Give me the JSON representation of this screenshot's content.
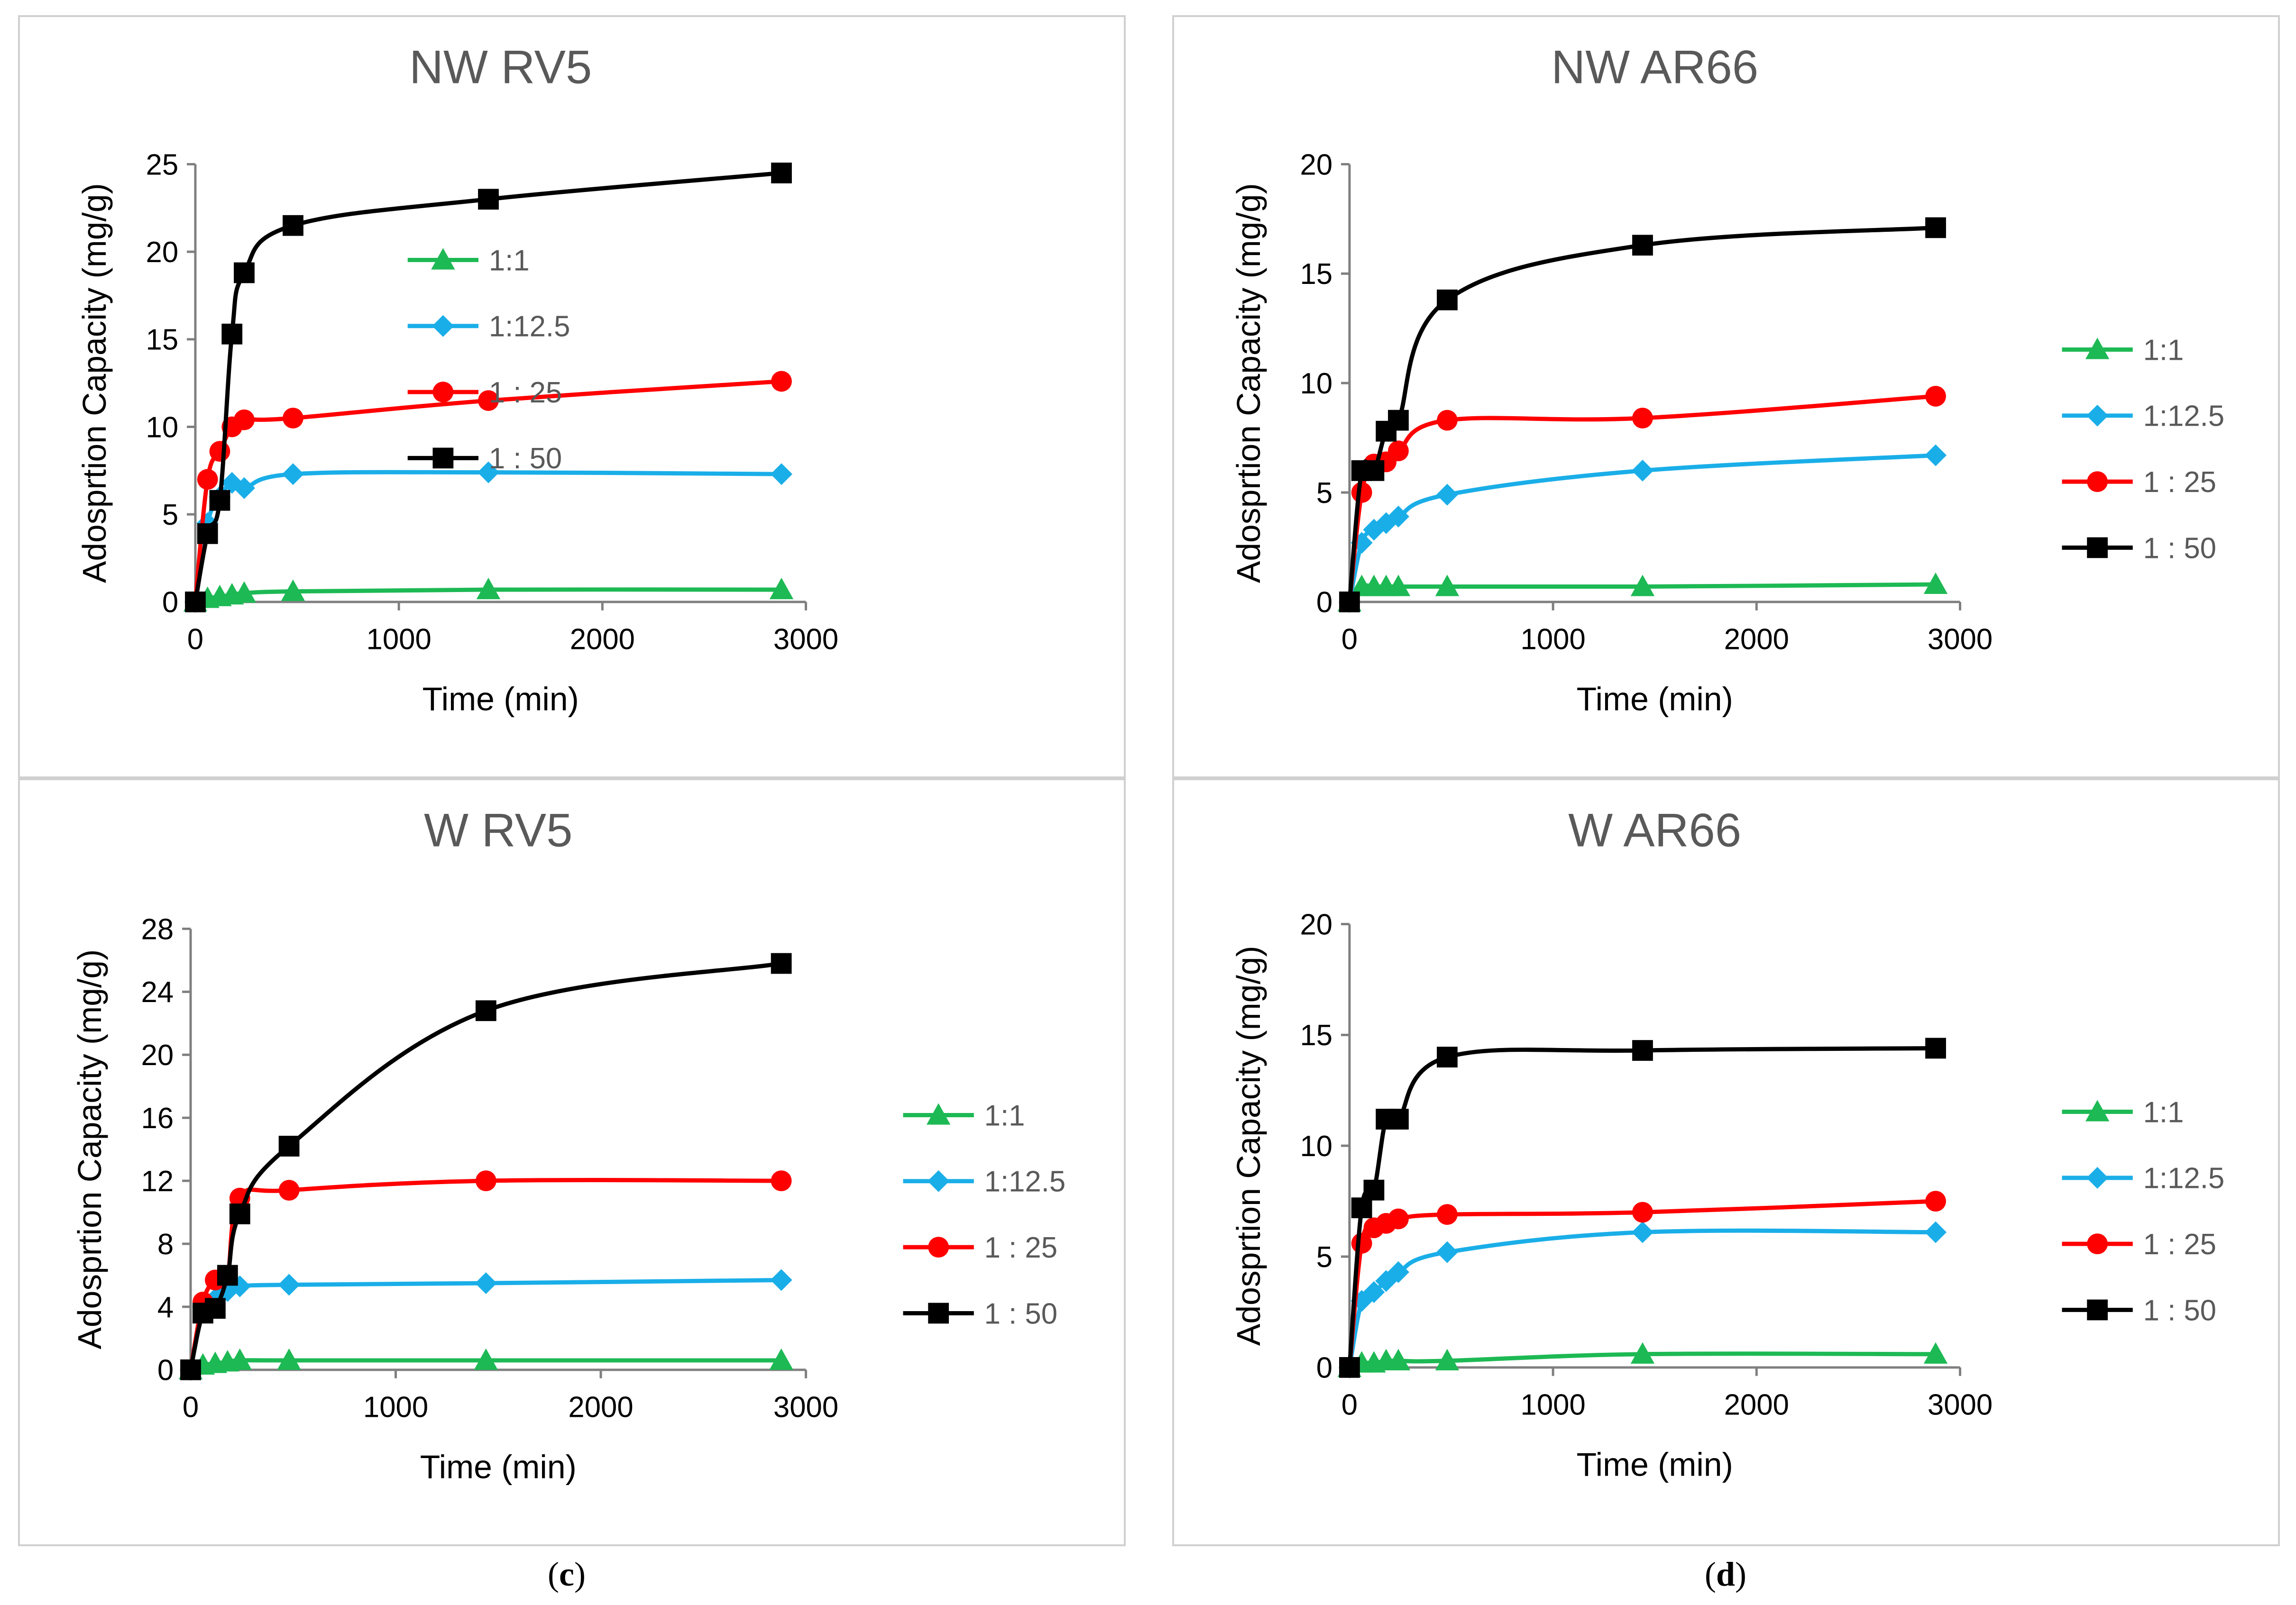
{
  "chart_data": [
    {
      "type": "line",
      "title": "NW RV5",
      "xlabel": "Time (min)",
      "ylabel": "Adosprtion Capacity  (mg/g)",
      "xlim": [
        0,
        3000
      ],
      "ylim": [
        0,
        25
      ],
      "xticks": [
        0,
        1000,
        2000,
        3000
      ],
      "yticks": [
        0,
        5,
        10,
        15,
        20,
        25
      ],
      "legend": "inside-center",
      "series": [
        {
          "name": "1:1",
          "color": "#1db954",
          "marker": "triangle",
          "x": [
            0,
            60,
            120,
            180,
            240,
            480,
            1440,
            2880
          ],
          "y": [
            0,
            0.2,
            0.3,
            0.4,
            0.5,
            0.6,
            0.7,
            0.7
          ]
        },
        {
          "name": "1:12.5",
          "color": "#1aaee8",
          "marker": "diamond",
          "x": [
            0,
            60,
            120,
            180,
            240,
            480,
            1440,
            2880
          ],
          "y": [
            0,
            4.5,
            6.0,
            6.8,
            6.5,
            7.3,
            7.4,
            7.3
          ]
        },
        {
          "name": "1 : 25",
          "color": "#ff0000",
          "marker": "circle",
          "x": [
            0,
            60,
            120,
            180,
            240,
            480,
            1440,
            2880
          ],
          "y": [
            0,
            7.0,
            8.6,
            10.0,
            10.4,
            10.5,
            11.5,
            12.6
          ]
        },
        {
          "name": "1 : 50",
          "color": "#000000",
          "marker": "square",
          "x": [
            0,
            60,
            120,
            180,
            240,
            480,
            1440,
            2880
          ],
          "y": [
            0,
            3.9,
            5.8,
            15.3,
            18.8,
            21.5,
            23.0,
            24.5
          ]
        }
      ]
    },
    {
      "type": "line",
      "title": "NW AR66",
      "xlabel": "Time (min)",
      "ylabel": "Adosprtion Capacity  (mg/g)",
      "xlim": [
        0,
        3000
      ],
      "ylim": [
        0,
        20
      ],
      "xticks": [
        0,
        1000,
        2000,
        3000
      ],
      "yticks": [
        0,
        5,
        10,
        15,
        20
      ],
      "legend": "right",
      "series": [
        {
          "name": "1:1",
          "color": "#1db954",
          "marker": "triangle",
          "x": [
            0,
            60,
            120,
            180,
            240,
            480,
            1440,
            2880
          ],
          "y": [
            0,
            0.7,
            0.7,
            0.7,
            0.7,
            0.7,
            0.7,
            0.8
          ]
        },
        {
          "name": "1:12.5",
          "color": "#1aaee8",
          "marker": "diamond",
          "x": [
            0,
            60,
            120,
            180,
            240,
            480,
            1440,
            2880
          ],
          "y": [
            0,
            2.7,
            3.3,
            3.6,
            3.9,
            4.9,
            6.0,
            6.7
          ]
        },
        {
          "name": "1 : 25",
          "color": "#ff0000",
          "marker": "circle",
          "x": [
            0,
            60,
            120,
            180,
            240,
            480,
            1440,
            2880
          ],
          "y": [
            0,
            5.0,
            6.3,
            6.4,
            6.9,
            8.3,
            8.4,
            9.4
          ]
        },
        {
          "name": "1 : 50",
          "color": "#000000",
          "marker": "square",
          "x": [
            0,
            60,
            120,
            180,
            240,
            480,
            1440,
            2880
          ],
          "y": [
            0,
            6.0,
            6.0,
            7.8,
            8.3,
            13.8,
            16.3,
            17.1
          ]
        }
      ]
    },
    {
      "type": "line",
      "title": "W RV5",
      "xlabel": "Time (min)",
      "ylabel": "Adosprtion Capacity  (mg/g)",
      "xlim": [
        0,
        3000
      ],
      "ylim": [
        0,
        28
      ],
      "xticks": [
        0,
        1000,
        2000,
        3000
      ],
      "yticks": [
        0,
        4,
        8,
        12,
        16,
        20,
        24,
        28
      ],
      "legend": "right",
      "series": [
        {
          "name": "1:1",
          "color": "#1db954",
          "marker": "triangle",
          "x": [
            0,
            60,
            120,
            180,
            240,
            480,
            1440,
            2880
          ],
          "y": [
            0,
            0.3,
            0.4,
            0.5,
            0.6,
            0.6,
            0.6,
            0.6
          ]
        },
        {
          "name": "1:12.5",
          "color": "#1aaee8",
          "marker": "diamond",
          "x": [
            0,
            60,
            120,
            180,
            240,
            480,
            1440,
            2880
          ],
          "y": [
            0,
            4.0,
            4.5,
            5.0,
            5.3,
            5.4,
            5.5,
            5.7
          ]
        },
        {
          "name": "1 : 25",
          "color": "#ff0000",
          "marker": "circle",
          "x": [
            0,
            60,
            120,
            180,
            240,
            480,
            1440,
            2880
          ],
          "y": [
            0,
            4.3,
            5.7,
            6.0,
            10.9,
            11.4,
            12.0,
            12.0
          ]
        },
        {
          "name": "1 : 50",
          "color": "#000000",
          "marker": "square",
          "x": [
            0,
            60,
            120,
            180,
            240,
            480,
            1440,
            2880
          ],
          "y": [
            0,
            3.6,
            3.9,
            6.0,
            9.9,
            14.2,
            22.8,
            25.8
          ]
        }
      ]
    },
    {
      "type": "line",
      "title": "W AR66",
      "xlabel": "Time (min)",
      "ylabel": "Adosprtion Capacity  (mg/g)",
      "xlim": [
        0,
        3000
      ],
      "ylim": [
        0,
        20
      ],
      "xticks": [
        0,
        1000,
        2000,
        3000
      ],
      "yticks": [
        0,
        5,
        10,
        15,
        20
      ],
      "legend": "right",
      "series": [
        {
          "name": "1:1",
          "color": "#1db954",
          "marker": "triangle",
          "x": [
            0,
            60,
            120,
            180,
            240,
            480,
            1440,
            2880
          ],
          "y": [
            0,
            0.2,
            0.2,
            0.3,
            0.3,
            0.3,
            0.6,
            0.6
          ]
        },
        {
          "name": "1:12.5",
          "color": "#1aaee8",
          "marker": "diamond",
          "x": [
            0,
            60,
            120,
            180,
            240,
            480,
            1440,
            2880
          ],
          "y": [
            0,
            3.0,
            3.4,
            3.9,
            4.3,
            5.2,
            6.1,
            6.1
          ]
        },
        {
          "name": "1 : 25",
          "color": "#ff0000",
          "marker": "circle",
          "x": [
            0,
            60,
            120,
            180,
            240,
            480,
            1440,
            2880
          ],
          "y": [
            0,
            5.6,
            6.3,
            6.5,
            6.7,
            6.9,
            7.0,
            7.5
          ]
        },
        {
          "name": "1 : 50",
          "color": "#000000",
          "marker": "square",
          "x": [
            0,
            60,
            120,
            180,
            240,
            480,
            1440,
            2880
          ],
          "y": [
            0,
            7.2,
            8.0,
            11.2,
            11.2,
            14.0,
            14.3,
            14.4
          ]
        }
      ]
    }
  ],
  "labels": {
    "c_open": "(",
    "c_letter": "c",
    "c_close": ")",
    "d_open": "(",
    "d_letter": "d",
    "d_close": ")"
  }
}
